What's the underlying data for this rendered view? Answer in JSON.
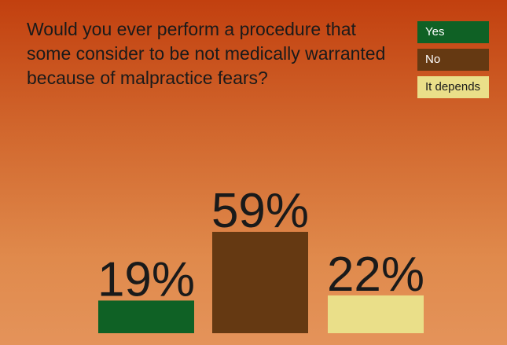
{
  "question": "Would you ever perform a procedure that some consider to be not medically warranted because of malpractice fears?",
  "chart_data": {
    "type": "bar",
    "categories": [
      "Yes",
      "No",
      "It depends"
    ],
    "values": [
      19,
      59,
      22
    ],
    "value_labels": [
      "19%",
      "59%",
      "22%"
    ],
    "colors": [
      "#0f6125",
      "#653912",
      "#eadf89"
    ],
    "legend_text_colors": [
      "#ffffff",
      "#ffffff",
      "#1a1a1a"
    ],
    "ylim": [
      0,
      59
    ],
    "legend": "top-right"
  }
}
